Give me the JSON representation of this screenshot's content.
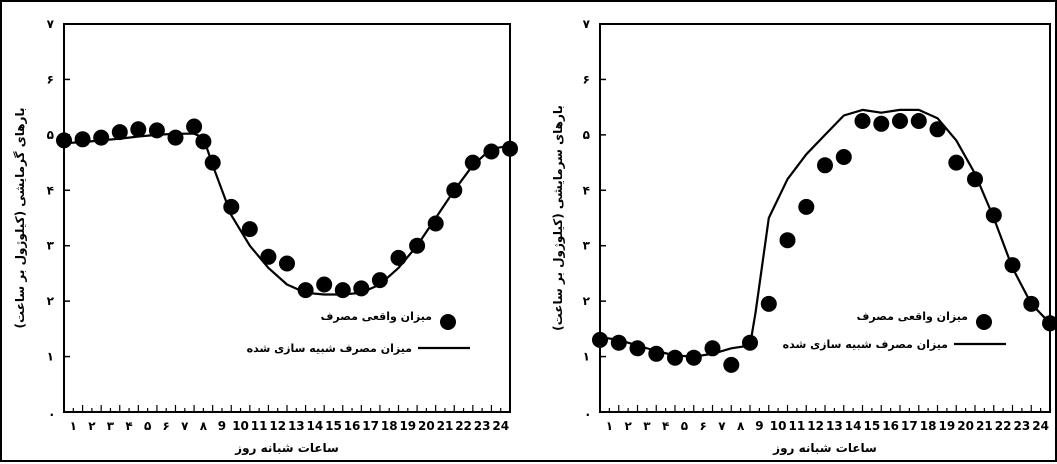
{
  "chart_data": [
    {
      "type": "scatter",
      "title": "",
      "xlabel": "ساعات شبانه روز",
      "ylabel": "بارهای گرمایشی (کیلوژول بر ساعت)",
      "xlim": [
        0,
        24
      ],
      "ylim": [
        0,
        7
      ],
      "x_tick_labels": [
        "۱",
        "۲",
        "۳",
        "۴",
        "۵",
        "۶",
        "۷",
        "۸",
        "9",
        "10",
        "11",
        "12",
        "13",
        "14",
        "15",
        "16",
        "17",
        "18",
        "19",
        "20",
        "21",
        "22",
        "23",
        "24"
      ],
      "y_tick_labels": [
        ".",
        "۱",
        "۲",
        "۳",
        "۴",
        "۵",
        "۶",
        "۷"
      ],
      "legend_position": "center-right",
      "series": [
        {
          "name": "میزان واقعی مصرف",
          "kind": "points",
          "x": [
            0,
            1,
            2,
            3,
            4,
            5,
            6,
            7,
            7.5,
            8,
            9,
            10,
            11,
            12,
            13,
            14,
            15,
            16,
            17,
            18,
            19,
            20,
            21,
            22,
            23,
            24
          ],
          "y": [
            4.9,
            4.92,
            4.95,
            5.05,
            5.1,
            5.08,
            4.95,
            5.15,
            4.88,
            4.5,
            3.7,
            3.3,
            2.8,
            2.68,
            2.2,
            2.3,
            2.2,
            2.23,
            2.38,
            2.78,
            3.0,
            3.4,
            4.0,
            4.5,
            4.7,
            4.75
          ]
        },
        {
          "name": "میزان مصرف شبیه سازی شده",
          "kind": "line",
          "x": [
            0,
            1,
            2,
            3,
            4,
            5,
            6,
            7,
            7.5,
            8,
            9,
            10,
            11,
            12,
            13,
            14,
            15,
            16,
            17,
            18,
            19,
            20,
            21,
            22,
            23,
            24
          ],
          "y": [
            4.85,
            4.87,
            4.9,
            4.93,
            4.97,
            5.0,
            5.02,
            5.02,
            4.95,
            4.45,
            3.55,
            3.0,
            2.6,
            2.3,
            2.15,
            2.12,
            2.12,
            2.15,
            2.3,
            2.6,
            3.0,
            3.5,
            4.0,
            4.45,
            4.75,
            4.8
          ]
        }
      ]
    },
    {
      "type": "scatter",
      "title": "",
      "xlabel": "ساعات شبانه روز",
      "ylabel": "بارهای سرمایشی (کیلوژول بر ساعت)",
      "xlim": [
        0,
        24
      ],
      "ylim": [
        0,
        7
      ],
      "x_tick_labels": [
        "۱",
        "۲",
        "۳",
        "۴",
        "۵",
        "۶",
        "۷",
        "۸",
        "9",
        "10",
        "11",
        "12",
        "13",
        "14",
        "15",
        "16",
        "17",
        "18",
        "19",
        "20",
        "21",
        "22",
        "23",
        "24"
      ],
      "y_tick_labels": [
        ".",
        "۱",
        "۲",
        "۳",
        "۴",
        "۵",
        "۶",
        "۷"
      ],
      "legend_position": "center-right",
      "series": [
        {
          "name": "میزان واقعی مصرف",
          "kind": "points",
          "x": [
            0,
            1,
            2,
            3,
            4,
            5,
            6,
            7,
            8,
            9,
            10,
            11,
            12,
            13,
            14,
            15,
            16,
            17,
            18,
            19,
            20,
            21,
            22,
            23,
            24
          ],
          "y": [
            1.3,
            1.25,
            1.15,
            1.05,
            0.98,
            0.98,
            1.15,
            0.85,
            1.25,
            1.95,
            3.1,
            3.7,
            4.45,
            4.6,
            5.25,
            5.2,
            5.25,
            5.25,
            5.1,
            4.5,
            4.2,
            3.55,
            2.65,
            1.95,
            1.6
          ]
        },
        {
          "name": "میزان مصرف شبیه سازی شده",
          "kind": "line",
          "x": [
            0,
            1,
            2,
            3,
            4,
            5,
            6,
            7,
            8,
            8.3,
            9,
            10,
            11,
            12,
            13,
            14,
            15,
            16,
            17,
            18,
            19,
            20,
            21,
            22,
            23,
            24
          ],
          "y": [
            1.35,
            1.3,
            1.2,
            1.1,
            1.02,
            1.0,
            1.05,
            1.15,
            1.2,
            1.8,
            3.5,
            4.2,
            4.65,
            5.0,
            5.35,
            5.45,
            5.4,
            5.45,
            5.45,
            5.3,
            4.9,
            4.3,
            3.5,
            2.6,
            1.95,
            1.6
          ]
        }
      ]
    }
  ]
}
